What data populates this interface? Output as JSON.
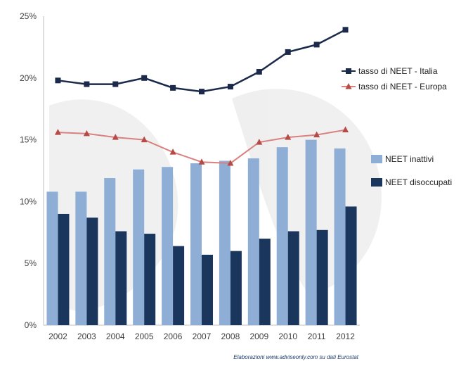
{
  "chart_data": {
    "type": "bar",
    "categories": [
      "2002",
      "2003",
      "2004",
      "2005",
      "2006",
      "2007",
      "2008",
      "2009",
      "2010",
      "2011",
      "2012"
    ],
    "ylim": [
      0,
      25
    ],
    "yticks": [
      "0%",
      "5%",
      "10%",
      "15%",
      "20%",
      "25%"
    ],
    "grid": false,
    "legend_position": "right",
    "series": [
      {
        "name": "NEET inattivi",
        "kind": "bar",
        "color": "#8eaed6",
        "values": [
          10.8,
          10.8,
          11.9,
          12.6,
          12.8,
          13.1,
          13.3,
          13.5,
          14.4,
          15.0,
          14.3
        ]
      },
      {
        "name": "NEET disoccupati",
        "kind": "bar",
        "color": "#1b365d",
        "values": [
          9.0,
          8.7,
          7.6,
          7.4,
          6.4,
          5.7,
          6.0,
          7.0,
          7.6,
          7.7,
          9.6
        ]
      },
      {
        "name": "tasso di NEET - Italia",
        "kind": "line",
        "color": "#1b2a4a",
        "marker": "square",
        "values": [
          19.8,
          19.5,
          19.5,
          20.0,
          19.2,
          18.9,
          19.3,
          20.5,
          22.1,
          22.7,
          23.9
        ]
      },
      {
        "name": "tasso di NEET - Europa",
        "kind": "line",
        "color": "#c0504d",
        "marker": "triangle",
        "values": [
          15.6,
          15.5,
          15.2,
          15.0,
          14.0,
          13.2,
          13.1,
          14.8,
          15.2,
          15.4,
          15.8
        ]
      }
    ],
    "source_note": "Elaborazioni www.adviseonly.com su dati Eurostat"
  }
}
